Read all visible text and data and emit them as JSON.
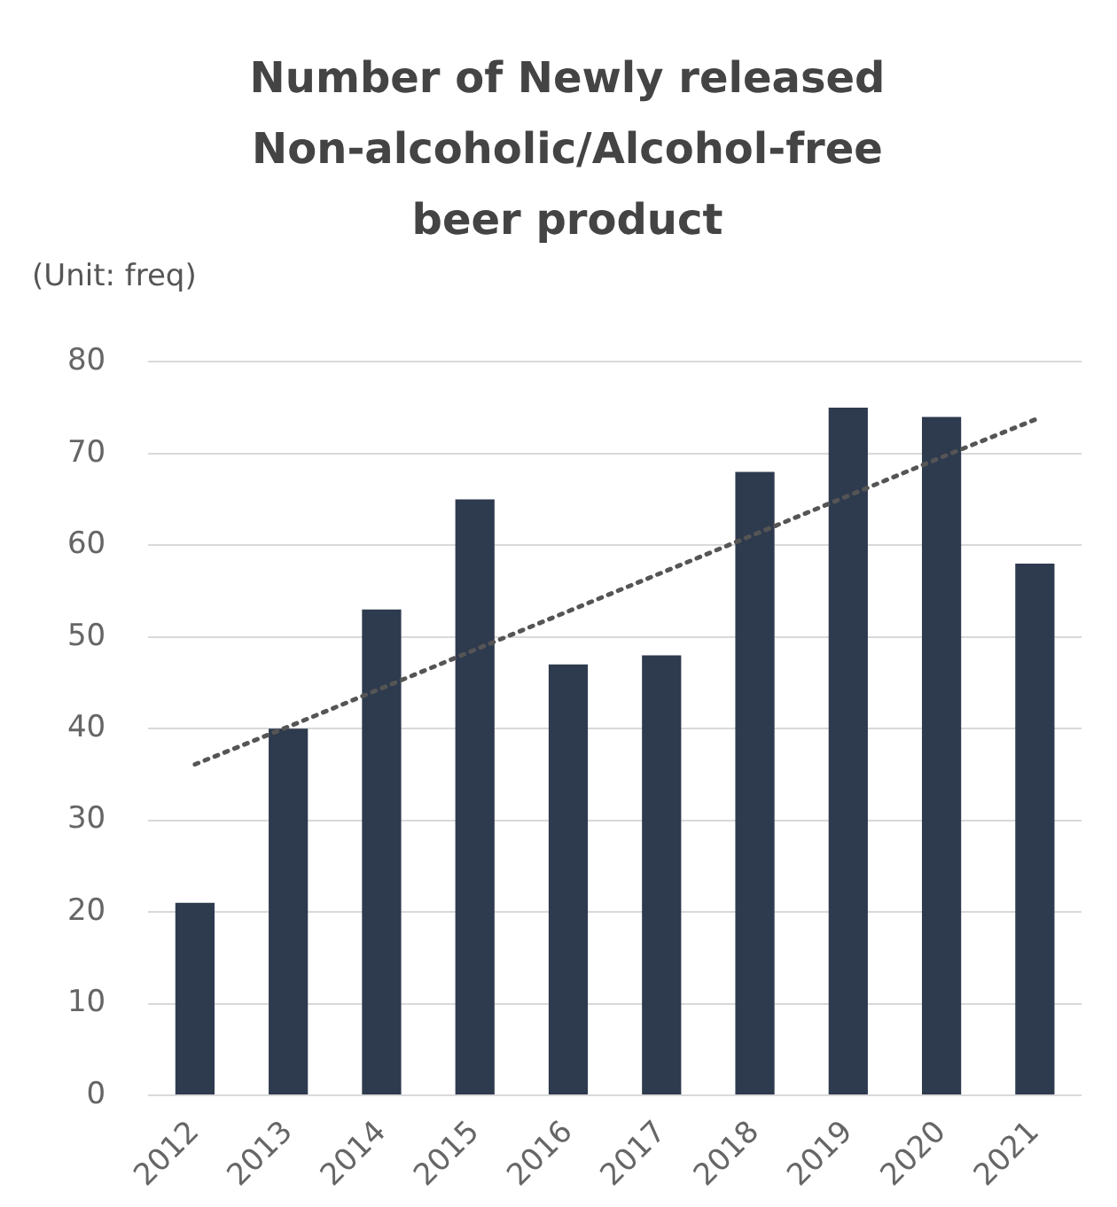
{
  "chart_data": {
    "type": "bar",
    "title": "Number of Newly released Non-alcoholic/Alcohol-free beer product",
    "ylabel": "(Unit: freq)",
    "categories": [
      "2012",
      "2013",
      "2014",
      "2015",
      "2016",
      "2017",
      "2018",
      "2019",
      "2020",
      "2021"
    ],
    "series": [
      {
        "color": "#2e3a4e",
        "values": [
          21,
          40,
          53,
          65,
          47,
          48,
          68,
          75,
          74,
          58
        ]
      },
      {
        "type": "line",
        "color": "#555555",
        "line_style": "dotted",
        "marker": "none",
        "values": [
          36.1,
          40.2,
          44.4,
          48.6,
          52.8,
          57.0,
          61.2,
          65.4,
          69.6,
          73.7
        ]
      }
    ],
    "ylim": [
      0,
      80
    ],
    "yticks": [
      0,
      10,
      20,
      30,
      40,
      50,
      60,
      70,
      80
    ],
    "grid": "y"
  }
}
